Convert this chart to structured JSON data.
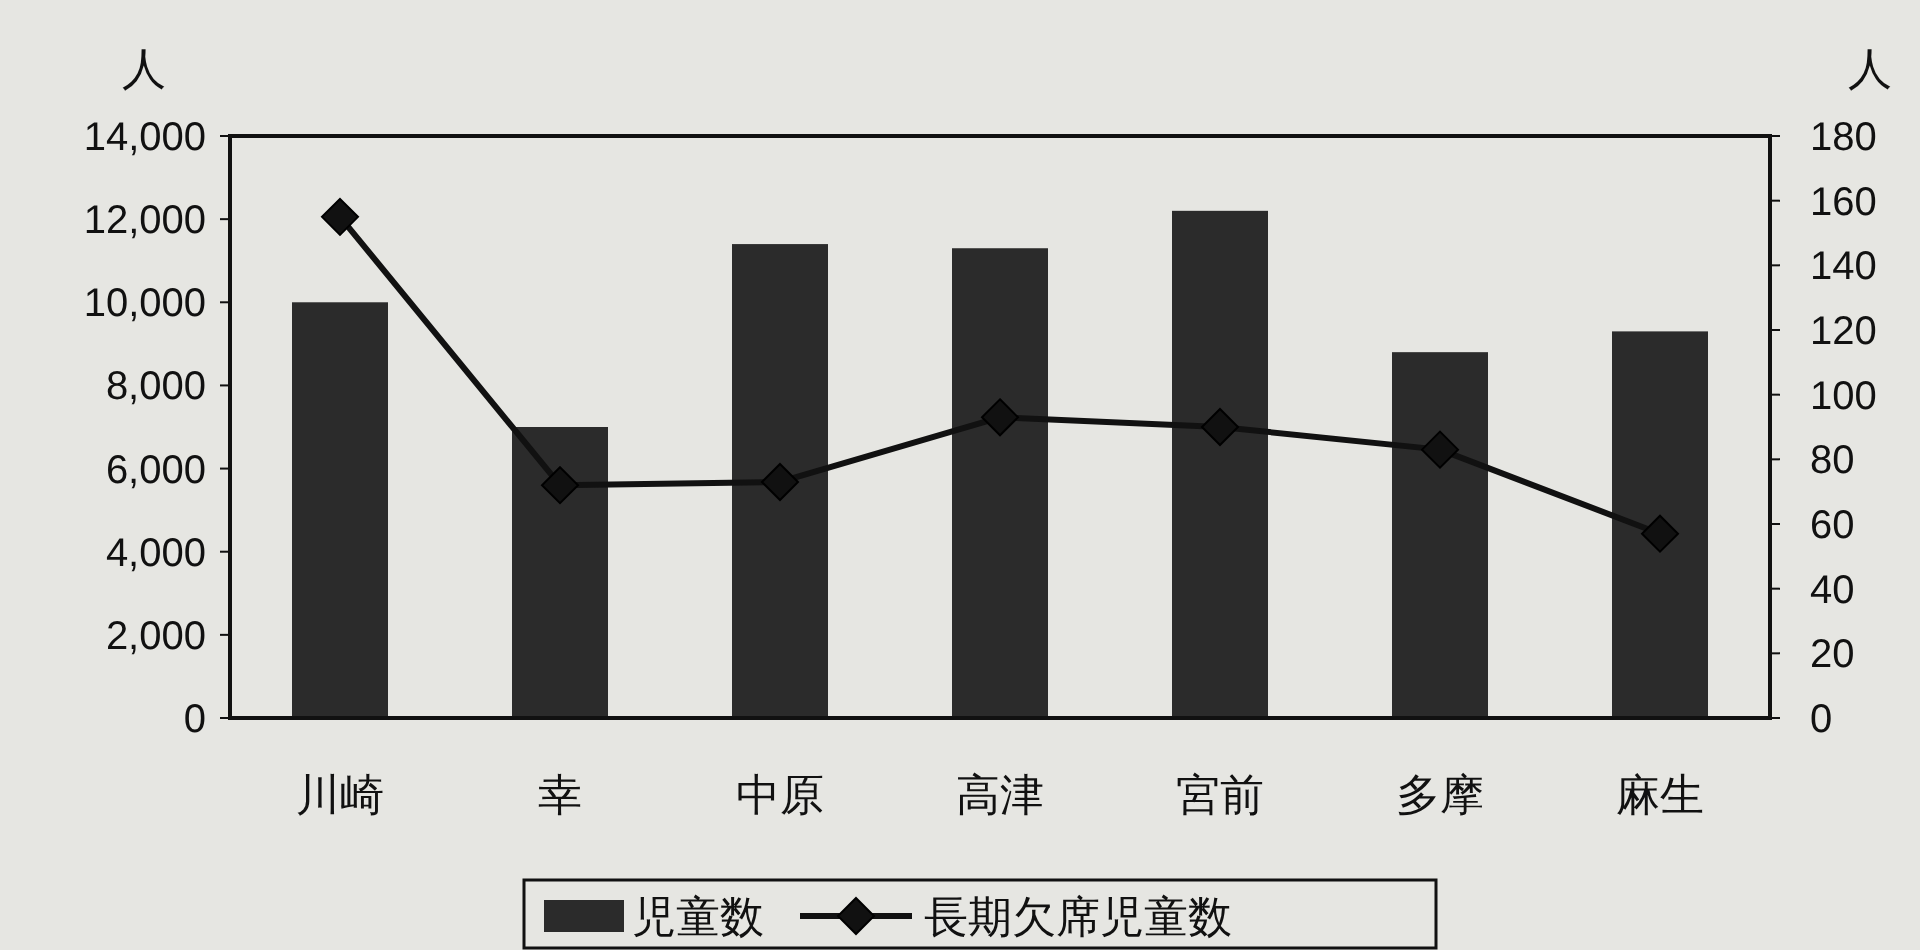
{
  "chart_data": {
    "type": "bar",
    "ylabel": "人",
    "y2label": "人",
    "categories": [
      "川崎",
      "幸",
      "中原",
      "高津",
      "宮前",
      "多摩",
      "麻生"
    ],
    "series": [
      {
        "name": "児童数",
        "color": "#2b2b2b",
        "values": [
          10000,
          7000,
          11400,
          11300,
          12200,
          8800,
          9300
        ]
      },
      {
        "name": "長期欠席児童数",
        "type": "line",
        "axis": "y2",
        "color": "#111111",
        "marker": "diamond",
        "line_style": "solid",
        "values": [
          155,
          72,
          73,
          93,
          90,
          83,
          57
        ]
      }
    ],
    "ylim": [
      0,
      14000
    ],
    "yticks": [
      {
        "value": 0,
        "label": "0"
      },
      {
        "value": 2000,
        "label": "2,000"
      },
      {
        "value": 4000,
        "label": "4,000"
      },
      {
        "value": 6000,
        "label": "6,000"
      },
      {
        "value": 8000,
        "label": "8,000"
      },
      {
        "value": 10000,
        "label": "10,000"
      },
      {
        "value": 12000,
        "label": "12,000"
      },
      {
        "value": 14000,
        "label": "14,000"
      }
    ],
    "y2lim": [
      0,
      180
    ],
    "y2ticks": [
      0,
      20,
      40,
      60,
      80,
      100,
      120,
      140,
      160,
      180
    ],
    "legend": "bottom"
  }
}
